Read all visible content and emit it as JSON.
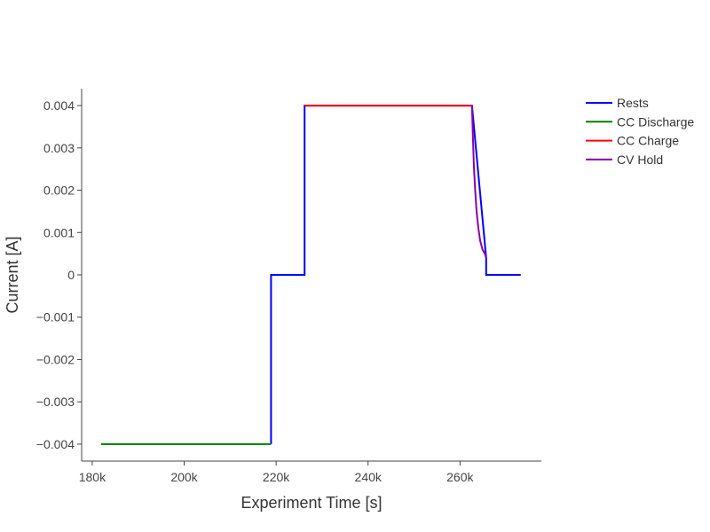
{
  "chart_data": {
    "type": "line",
    "title": "",
    "xlabel": "Experiment Time [s]",
    "ylabel": "Current [A]",
    "xlim": [
      177700,
      277700
    ],
    "ylim": [
      -0.0044,
      0.0044
    ],
    "grid": false,
    "legend_position": "top-right outside",
    "x_ticks": [
      {
        "value": 180000,
        "label": "180k"
      },
      {
        "value": 200000,
        "label": "200k"
      },
      {
        "value": 220000,
        "label": "220k"
      },
      {
        "value": 240000,
        "label": "240k"
      },
      {
        "value": 260000,
        "label": "260k"
      }
    ],
    "y_ticks": [
      {
        "value": 0.004,
        "label": "0.004"
      },
      {
        "value": 0.003,
        "label": "0.003"
      },
      {
        "value": 0.002,
        "label": "0.002"
      },
      {
        "value": 0.001,
        "label": "0.001"
      },
      {
        "value": 0,
        "label": "0"
      },
      {
        "value": -0.001,
        "label": "−0.001"
      },
      {
        "value": -0.002,
        "label": "−0.002"
      },
      {
        "value": -0.003,
        "label": "−0.003"
      },
      {
        "value": -0.004,
        "label": "−0.004"
      }
    ],
    "series": [
      {
        "name": "Rests",
        "color": "#0000ff",
        "x": [
          218900,
          218900,
          226200,
          226200,
          262600,
          262600,
          265700,
          265700,
          273200
        ],
        "y": [
          -0.004,
          0,
          0,
          0.004,
          0.004,
          0.004,
          0.0004,
          0,
          0
        ]
      },
      {
        "name": "CC Discharge",
        "color": "#008000",
        "x": [
          181900,
          218900
        ],
        "y": [
          -0.004,
          -0.004
        ]
      },
      {
        "name": "CC Charge",
        "color": "#ff0000",
        "x": [
          226200,
          262600
        ],
        "y": [
          0.004,
          0.004
        ]
      },
      {
        "name": "CV Hold",
        "color": "#8800aa",
        "x": [
          262600,
          262800,
          263000,
          263300,
          263600,
          264000,
          264400,
          264900,
          265400,
          265700
        ],
        "y": [
          0.004,
          0.0033,
          0.0026,
          0.002,
          0.0015,
          0.0011,
          0.0008,
          0.0006,
          0.0005,
          0.0004
        ]
      }
    ]
  }
}
